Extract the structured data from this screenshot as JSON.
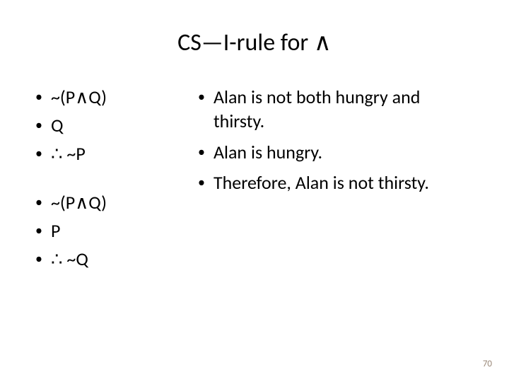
{
  "title": "CS—I-rule for ∧",
  "left": {
    "group1": {
      "item1": "~(P∧Q)",
      "item2": "Q",
      "item3": "∴ ~P"
    },
    "group2": {
      "item1": "~(P∧Q)",
      "item2": "P",
      "item3": "∴ ~Q"
    }
  },
  "right": {
    "item1": "Alan is not both hungry and thirsty.",
    "item2": "Alan is hungry.",
    "item3": "Therefore, Alan is not thirsty."
  },
  "page_number": "70",
  "colors": {
    "background": "#ffffff",
    "text": "#000000",
    "page_num": "#9a8878"
  }
}
